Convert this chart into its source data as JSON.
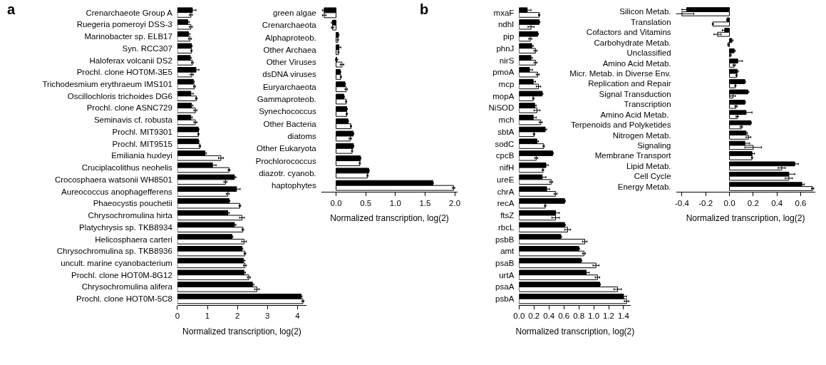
{
  "chart_data": [
    {
      "type": "bar",
      "orientation": "horizontal",
      "xlabel": "Normalized transcription, log(2)",
      "annotations": [
        "a"
      ],
      "categories": [
        "Crenarchaeote Group A",
        "Ruegeria pomeroyi DSS-3",
        "Marinobacter sp. ELB17",
        "Syn. RCC307",
        "Haloferax volcanii DS2",
        "Prochl. clone HOT0M-3E5",
        "Trichodesmium erythraeum IMS101",
        "Oscillochloris trichoides DG6",
        "Prochl. clone ASNC729",
        "Seminavis cf. robusta",
        "Prochl. MIT9301",
        "Prochl. MIT9515",
        "Emiliania huxleyi",
        "Cruciplacolithus neohelis",
        "Crocosphaera watsonii WH8501",
        "Aureococcus anophagefferens",
        "Phaeocystis pouchetii",
        "Chrysochromulina hirta",
        "Platychrysis sp. TKB8934",
        "Helicosphaera carteri",
        "Chrysochromulina sp. TKB8936",
        "uncult. marine cyanobacterium",
        "Prochl. clone HOT0M-8G12",
        "Chrysochromulina alifera",
        "Prochl. clone HOT0M-5C8"
      ],
      "xlim": [
        0,
        4.3
      ],
      "xticks": [
        0,
        1,
        2,
        3,
        4
      ],
      "series": [
        {
          "color": "#000000",
          "values": [
            0.5,
            0.35,
            0.37,
            0.47,
            0.43,
            0.62,
            0.53,
            0.45,
            0.47,
            0.45,
            0.7,
            0.7,
            0.92,
            1.17,
            1.9,
            1.97,
            1.72,
            1.68,
            1.9,
            1.82,
            2.15,
            2.2,
            2.22,
            2.5,
            4.12
          ],
          "errors": [
            0.12,
            0.05,
            0.05,
            0.02,
            0.03,
            0.1,
            0.03,
            0.08,
            0.05,
            0.05,
            0.02,
            0.02,
            0.05,
            0.12,
            0.05,
            0.12,
            0.03,
            0.05,
            0.05,
            0.03,
            0.03,
            0.05,
            0.05,
            0.05,
            0.03
          ]
        },
        {
          "color": "#ffffff",
          "values": [
            0.45,
            0.45,
            0.42,
            0.47,
            0.5,
            0.48,
            0.57,
            0.63,
            0.6,
            0.6,
            0.7,
            0.75,
            1.45,
            1.72,
            1.6,
            1.68,
            2.08,
            2.15,
            2.18,
            2.22,
            2.25,
            2.25,
            2.38,
            2.65,
            4.18
          ],
          "errors": [
            0.05,
            0.05,
            0.05,
            0.02,
            0.03,
            0.05,
            0.03,
            0.03,
            0.05,
            0.05,
            0.02,
            0.03,
            0.08,
            0.03,
            0.05,
            0.05,
            0.03,
            0.08,
            0.03,
            0.08,
            0.03,
            0.05,
            0.05,
            0.08,
            0.03
          ]
        }
      ]
    },
    {
      "type": "bar",
      "orientation": "horizontal",
      "xlabel": "Normalized transcription, log(2)",
      "categories": [
        "green algae",
        "Crenarchaeota",
        "Alphaproteob.",
        "Other Archaea",
        "Other Viruses",
        "dsDNA viruses",
        "Euryarchaeota",
        "Gammaproteob.",
        "Synechococcus",
        "Other Bacteria",
        "diatoms",
        "Other Eukaryota",
        "Prochlorococcus",
        "diazotr. cyanob.",
        "haptophytes"
      ],
      "xlim": [
        -0.25,
        2.05
      ],
      "xticks": [
        {
          "value": 0,
          "label": "0.0"
        },
        0.5,
        {
          "value": 1,
          "label": "1.0"
        },
        1.5,
        {
          "value": 2,
          "label": "2.0"
        }
      ],
      "series": [
        {
          "color": "#000000",
          "values": [
            -0.2,
            -0.06,
            0.04,
            0.05,
            0.01,
            0.07,
            0.15,
            0.13,
            0.18,
            0.2,
            0.29,
            0.29,
            0.41,
            0.55,
            1.63
          ],
          "errors": [
            0.03,
            0.02,
            0.01,
            0.03,
            0.02,
            0.01,
            0.01,
            0.01,
            0.01,
            0.01,
            0.01,
            0.01,
            0.01,
            0.01,
            0.01
          ]
        },
        {
          "color": "#ffffff",
          "values": [
            -0.2,
            -0.06,
            0.03,
            0.04,
            0.1,
            0.08,
            0.17,
            0.17,
            0.18,
            0.25,
            0.24,
            0.27,
            0.4,
            0.53,
            1.98
          ],
          "errors": [
            0.03,
            0.02,
            0.01,
            0.01,
            0.03,
            0.01,
            0.02,
            0.01,
            0.01,
            0.01,
            0.02,
            0.01,
            0.01,
            0.01,
            0.02
          ]
        }
      ]
    },
    {
      "type": "bar",
      "orientation": "horizontal",
      "xlabel": "Normalized transcription, log(2)",
      "annotations": [
        "b"
      ],
      "categories": [
        "mxaF",
        "ndhI",
        "pip",
        "phnJ",
        "nirS",
        "pmoA",
        "mcp",
        "mopA",
        "NiSOD",
        "mch",
        "sbtA",
        "sodC",
        "cpcB",
        "nifH",
        "ureE",
        "chrA",
        "recA",
        "ftsZ",
        "rbcL",
        "psbB",
        "amt",
        "psaB",
        "urtA",
        "psaA",
        "psbA"
      ],
      "xlim": [
        0,
        1.5
      ],
      "xticks": [
        {
          "value": 0,
          "label": "0.0"
        },
        0.2,
        0.4,
        0.6,
        0.8,
        {
          "value": 1,
          "label": "1.0"
        },
        1.2,
        1.4
      ],
      "series": [
        {
          "color": "#000000",
          "values": [
            0.11,
            0.27,
            0.25,
            0.17,
            0.16,
            0.14,
            0.19,
            0.31,
            0.21,
            0.19,
            0.35,
            0.24,
            0.45,
            0.36,
            0.31,
            0.37,
            0.61,
            0.49,
            0.61,
            0.56,
            0.8,
            0.83,
            0.9,
            1.08,
            1.4
          ],
          "errors": [
            0.05,
            0.01,
            0.01,
            0.02,
            0.02,
            0.04,
            0.03,
            0.01,
            0.02,
            0.04,
            0.02,
            0.02,
            0.01,
            0.03,
            0.05,
            0.04,
            0.01,
            0.05,
            0.01,
            0.01,
            0.01,
            0.01,
            0.04,
            0.01,
            0.04
          ]
        },
        {
          "color": "#ffffff",
          "values": [
            0.27,
            0.16,
            0.15,
            0.22,
            0.22,
            0.25,
            0.26,
            0.19,
            0.24,
            0.29,
            0.2,
            0.33,
            0.23,
            0.32,
            0.43,
            0.49,
            0.35,
            0.49,
            0.65,
            0.88,
            0.87,
            1.03,
            1.05,
            1.32,
            1.44
          ],
          "errors": [
            0.01,
            0.04,
            0.02,
            0.02,
            0.02,
            0.02,
            0.03,
            0.01,
            0.04,
            0.02,
            0.01,
            0.01,
            0.02,
            0.01,
            0.02,
            0.02,
            0.01,
            0.05,
            0.04,
            0.03,
            0.02,
            0.04,
            0.03,
            0.05,
            0.03
          ]
        }
      ]
    },
    {
      "type": "bar",
      "orientation": "horizontal",
      "xlabel": "Normalized transcription, log(2)",
      "categories": [
        "Silicon Metab.",
        "Translation",
        "Cofactors and Vitamins",
        "Carbohydrate Metab.",
        "Unclassified",
        "Amino Acid Metab.",
        "Micr. Metab. in Diverse Env.",
        "Replication and Repair",
        "Signal Transduction",
        "Transcription",
        "Amino Acid Metab. ",
        "Terpenoids and Polyketides",
        "Nitrogen Metab.",
        "Signaling",
        "Membrane Transport",
        "Lipid Metab.",
        "Cell Cycle",
        "Energy Metab."
      ],
      "xlim": [
        -0.45,
        0.72
      ],
      "xticks": [
        -0.4,
        -0.2,
        {
          "value": 0,
          "label": "0.0"
        },
        0.2,
        0.4,
        0.6
      ],
      "series": [
        {
          "color": "#000000",
          "values": [
            -0.36,
            -0.02,
            -0.04,
            0.02,
            0.04,
            0.07,
            0.065,
            0.13,
            0.155,
            0.13,
            0.14,
            0.18,
            0.14,
            0.13,
            0.19,
            0.55,
            0.5,
            0.61
          ],
          "errors": [
            0.04,
            0.005,
            0.02,
            0.01,
            0.01,
            0.04,
            0.01,
            0.005,
            0.01,
            0.005,
            0.05,
            0.005,
            0.01,
            0.04,
            0.02,
            0.03,
            0.05,
            0.02
          ]
        },
        {
          "color": "#ffffff",
          "values": [
            -0.4,
            -0.14,
            -0.1,
            -0.01,
            0.01,
            0.04,
            0.06,
            0.05,
            0.03,
            0.055,
            0.065,
            0.1,
            0.16,
            0.2,
            0.19,
            0.44,
            0.5,
            0.7
          ],
          "errors": [
            0.1,
            0.005,
            0.03,
            0.005,
            0.005,
            0.01,
            0.005,
            0.005,
            0.02,
            0.01,
            0.01,
            0.01,
            0.02,
            0.07,
            0.005,
            0.03,
            0.03,
            0.01
          ]
        }
      ]
    }
  ]
}
